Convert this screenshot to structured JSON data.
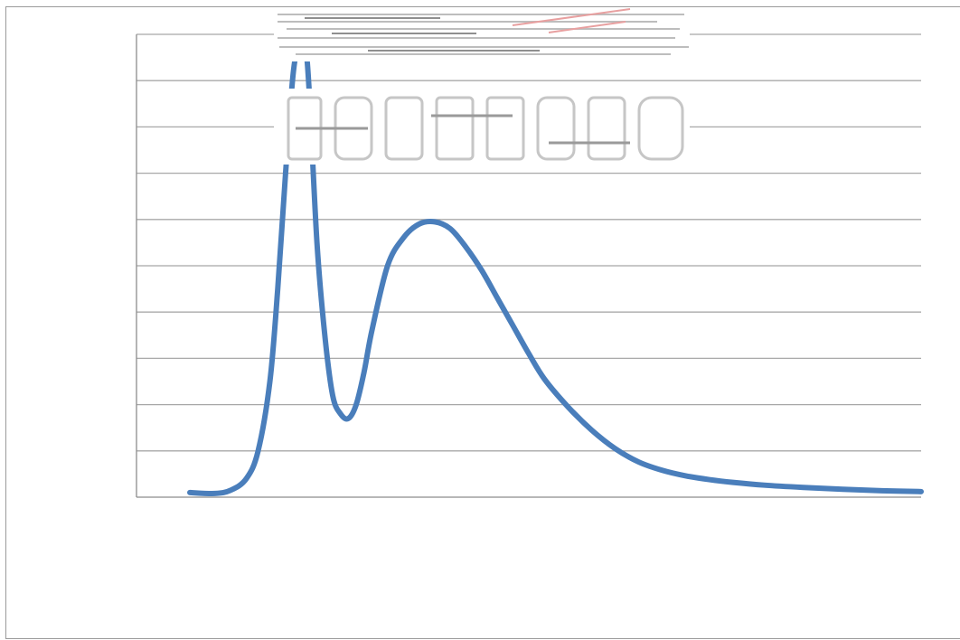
{
  "chart_data": {
    "type": "line",
    "title": "",
    "xlabel": "",
    "ylabel": "",
    "x_range": [
      0,
      1
    ],
    "ylim": [
      0,
      100
    ],
    "grid": true,
    "legend": "none",
    "series": [
      {
        "color": "#4a7ebb",
        "x": [
          0.068,
          0.1,
          0.12,
          0.14,
          0.155,
          0.17,
          0.18,
          0.19,
          0.2,
          0.21,
          0.215,
          0.22,
          0.23,
          0.24,
          0.25,
          0.26,
          0.27,
          0.28,
          0.29,
          0.3,
          0.32,
          0.34,
          0.36,
          0.38,
          0.4,
          0.42,
          0.44,
          0.46,
          0.48,
          0.5,
          0.52,
          0.55,
          0.58,
          0.61,
          0.64,
          0.67,
          0.7,
          0.73,
          0.76,
          0.8,
          0.85,
          0.9,
          0.95,
          1.0
        ],
        "y": [
          1,
          0.8,
          1.5,
          4,
          10,
          25,
          45,
          70,
          92,
          100,
          98,
          88,
          55,
          35,
          22,
          18,
          17,
          20,
          27,
          36,
          50,
          56,
          59,
          59.5,
          58,
          54,
          49,
          43,
          37,
          31,
          25.5,
          19.5,
          14.5,
          10.5,
          7.6,
          5.8,
          4.6,
          3.8,
          3.2,
          2.6,
          2.1,
          1.7,
          1.4,
          1.2
        ]
      }
    ]
  }
}
